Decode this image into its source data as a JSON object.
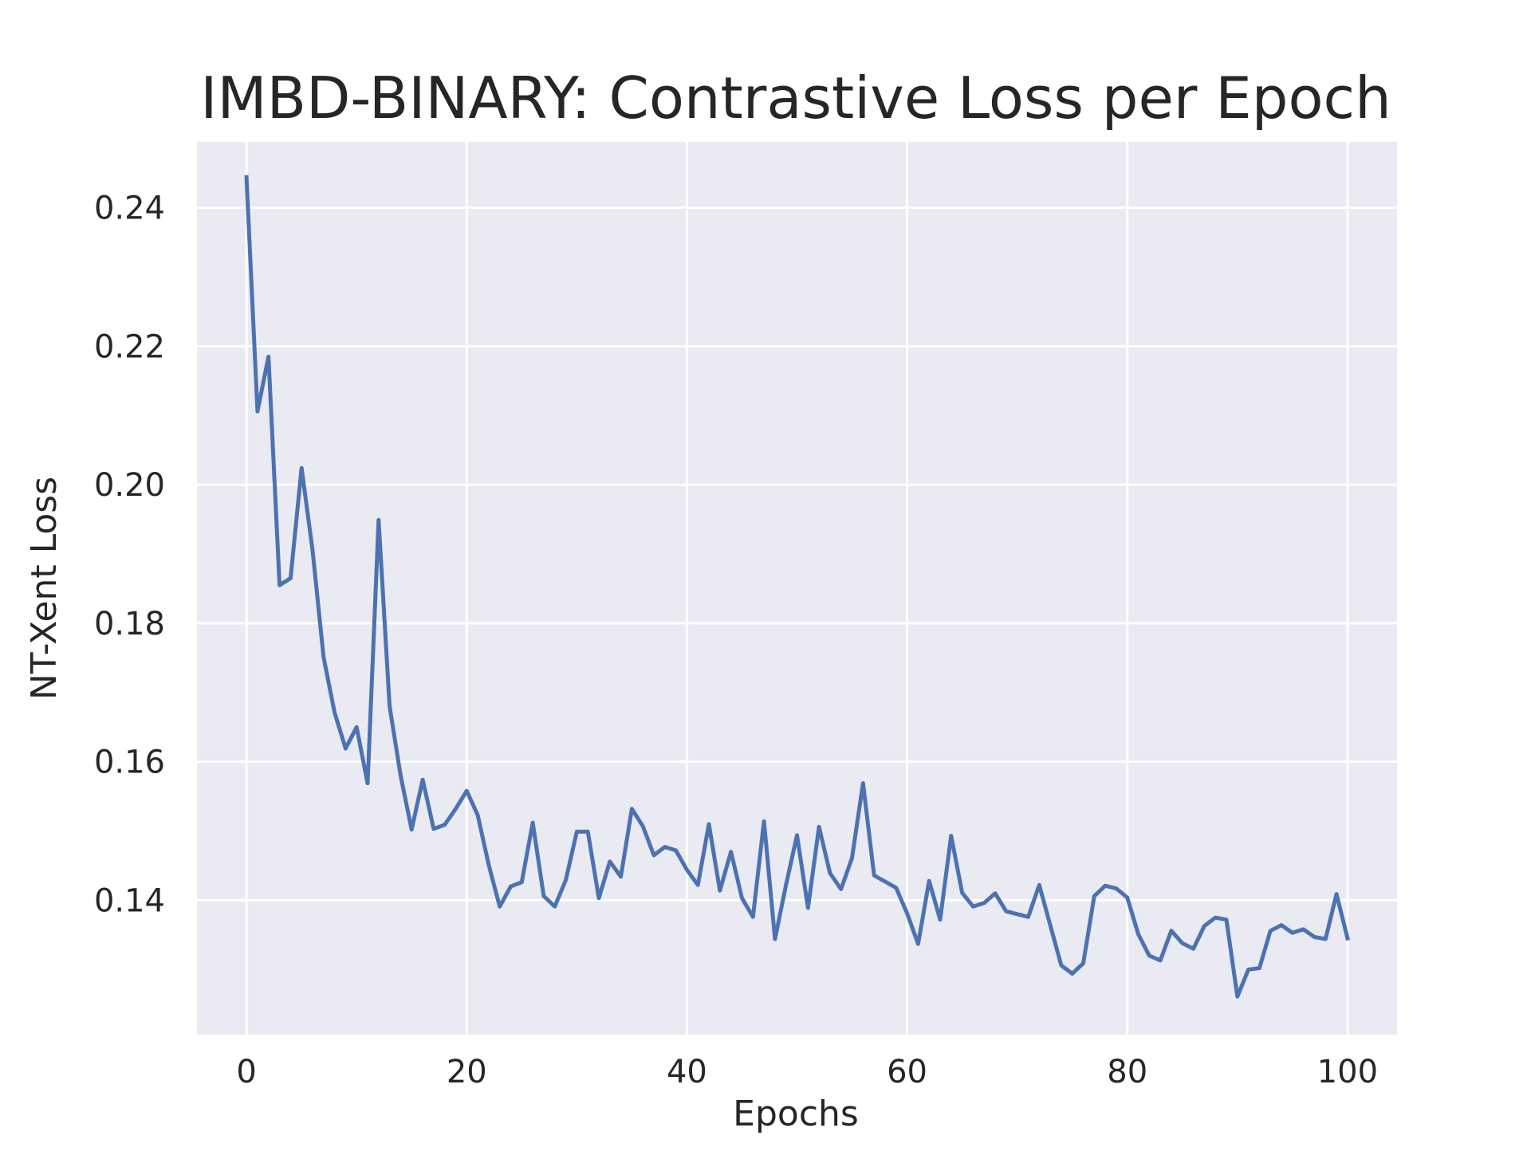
{
  "chart_data": {
    "type": "line",
    "title": "IMBD-BINARY: Contrastive Loss per Epoch",
    "xlabel": "Epochs",
    "ylabel": "NT-Xent Loss",
    "xlim": [
      -4.5,
      104.5
    ],
    "ylim": [
      0.1206,
      0.2495
    ],
    "x_ticks": [
      0,
      20,
      40,
      60,
      80,
      100
    ],
    "y_ticks": [
      0.14,
      0.16,
      0.18,
      0.2,
      0.22,
      0.24
    ],
    "x_tick_labels": [
      "0",
      "20",
      "40",
      "60",
      "80",
      "100"
    ],
    "y_tick_labels": [
      "0.14",
      "0.16",
      "0.18",
      "0.20",
      "0.22",
      "0.24"
    ],
    "grid": true,
    "background_color": "#eaeaf2",
    "grid_color": "#ffffff",
    "series": [
      {
        "color": "#4c72b0",
        "x": [
          0,
          1,
          2,
          3,
          4,
          5,
          6,
          7,
          8,
          9,
          10,
          11,
          12,
          13,
          14,
          15,
          16,
          17,
          18,
          19,
          20,
          21,
          22,
          23,
          24,
          25,
          26,
          27,
          28,
          29,
          30,
          31,
          32,
          33,
          34,
          35,
          36,
          37,
          38,
          39,
          40,
          41,
          42,
          43,
          44,
          45,
          46,
          47,
          48,
          49,
          50,
          51,
          52,
          53,
          54,
          55,
          56,
          57,
          58,
          59,
          60,
          61,
          62,
          63,
          64,
          65,
          66,
          67,
          68,
          69,
          70,
          71,
          72,
          73,
          74,
          75,
          76,
          77,
          78,
          79,
          80,
          81,
          82,
          83,
          84,
          85,
          86,
          87,
          88,
          89,
          90,
          91,
          92,
          93,
          94,
          95,
          96,
          97,
          98,
          99,
          100
        ],
        "values": [
          0.2444,
          0.2106,
          0.2185,
          0.1855,
          0.1865,
          0.2024,
          0.1905,
          0.1751,
          0.1671,
          0.1619,
          0.165,
          0.1569,
          0.1949,
          0.168,
          0.158,
          0.1502,
          0.1574,
          0.1503,
          0.1509,
          0.1532,
          0.1558,
          0.1523,
          0.1451,
          0.1391,
          0.142,
          0.1426,
          0.1512,
          0.1406,
          0.1391,
          0.1429,
          0.1499,
          0.1499,
          0.1403,
          0.1456,
          0.1434,
          0.1532,
          0.1507,
          0.1465,
          0.1477,
          0.1472,
          0.1444,
          0.1422,
          0.151,
          0.1414,
          0.147,
          0.1403,
          0.1376,
          0.1514,
          0.1344,
          0.1422,
          0.1494,
          0.1389,
          0.1506,
          0.1439,
          0.1416,
          0.1461,
          0.1569,
          0.1436,
          0.1427,
          0.1418,
          0.1381,
          0.1337,
          0.1428,
          0.1372,
          0.1493,
          0.1411,
          0.1391,
          0.1396,
          0.141,
          0.1384,
          0.138,
          0.1376,
          0.1422,
          0.1364,
          0.1306,
          0.1294,
          0.1309,
          0.1406,
          0.1421,
          0.1417,
          0.1404,
          0.1351,
          0.132,
          0.1313,
          0.1356,
          0.1338,
          0.133,
          0.1363,
          0.1375,
          0.1372,
          0.1261,
          0.13,
          0.1302,
          0.1356,
          0.1364,
          0.1353,
          0.1358,
          0.1347,
          0.1344,
          0.1409,
          0.1345
        ]
      }
    ]
  }
}
